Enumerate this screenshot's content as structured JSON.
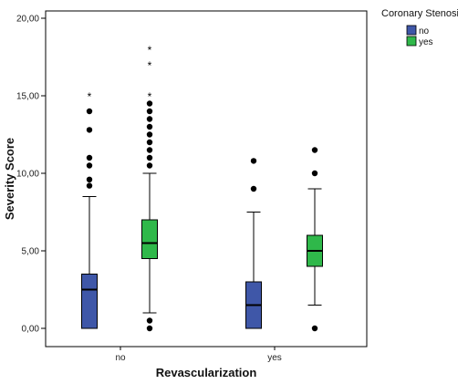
{
  "chart_data": {
    "type": "boxplot",
    "xlabel": "Revascularization",
    "ylabel": "Severity Score",
    "ylim": [
      0,
      20
    ],
    "y_ticks": [
      "0,00",
      "5,00",
      "10,00",
      "15,00",
      "20,00"
    ],
    "categories": [
      "no",
      "yes"
    ],
    "legend": {
      "title": "Coronary Stenosis",
      "position": "right-top",
      "entries": [
        {
          "label": "no",
          "color": "#3f57a8"
        },
        {
          "label": "yes",
          "color": "#2fb84a"
        }
      ]
    },
    "groups": [
      {
        "category": "no",
        "stenosis": "no",
        "color": "#3f57a8",
        "whisker_low": 0,
        "q1": 0,
        "median": 2.5,
        "q3": 3.5,
        "whisker_high": 8.5,
        "outliers": [
          9.2,
          9.6,
          10.5,
          11.0,
          12.8,
          14.0
        ],
        "extremes": [
          15.0
        ]
      },
      {
        "category": "no",
        "stenosis": "yes",
        "color": "#2fb84a",
        "whisker_low": 1.0,
        "q1": 4.5,
        "median": 5.5,
        "q3": 7.0,
        "whisker_high": 10.0,
        "outliers": [
          0.0,
          0.5,
          10.5,
          11.0,
          11.5,
          12.0,
          12.5,
          13.0,
          13.5,
          14.0,
          14.5
        ],
        "extremes": [
          15.0,
          17.0,
          18.0
        ]
      },
      {
        "category": "yes",
        "stenosis": "no",
        "color": "#3f57a8",
        "whisker_low": 0,
        "q1": 0,
        "median": 1.5,
        "q3": 3.0,
        "whisker_high": 7.5,
        "outliers": [
          9.0,
          10.8
        ],
        "extremes": []
      },
      {
        "category": "yes",
        "stenosis": "yes",
        "color": "#2fb84a",
        "whisker_low": 1.5,
        "q1": 4.0,
        "median": 5.0,
        "q3": 6.0,
        "whisker_high": 9.0,
        "outliers": [
          0.0,
          10.0,
          11.5
        ],
        "extremes": []
      }
    ]
  }
}
